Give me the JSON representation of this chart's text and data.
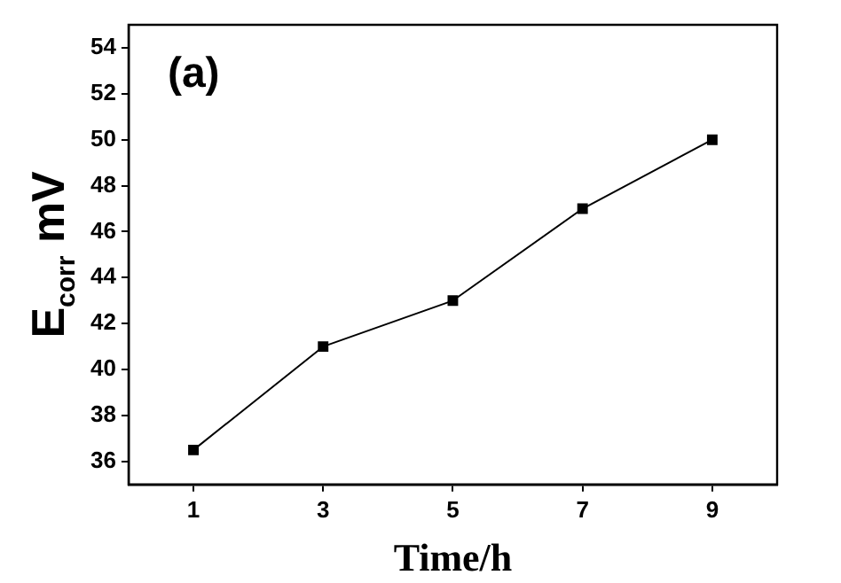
{
  "chart_data": {
    "type": "line",
    "xlabel": "Time/h",
    "ylabel": "E$_{corr}$ mV",
    "annotations": [
      "(a)"
    ],
    "x": [
      1,
      3,
      5,
      7,
      9
    ],
    "series": [
      {
        "color": "#000000",
        "values": [
          36.5,
          41,
          43,
          47,
          50
        ]
      }
    ],
    "xlim": [
      0,
      10
    ],
    "xticks": [
      1,
      3,
      5,
      7,
      9
    ],
    "ylim": [
      35,
      55
    ],
    "yticks": [
      36,
      38,
      40,
      42,
      44,
      46,
      48,
      50,
      52,
      54
    ],
    "grid": false,
    "legend": false,
    "marker": "square",
    "line_style": "solid"
  }
}
